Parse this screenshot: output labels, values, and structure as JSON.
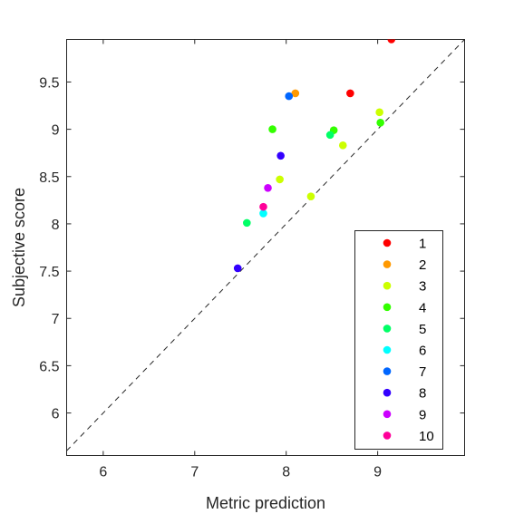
{
  "chart_data": {
    "type": "scatter",
    "title": "",
    "xlabel": "Metric prediction",
    "ylabel": "Subjective score",
    "xlim": [
      5.6,
      9.95
    ],
    "ylim": [
      5.55,
      9.95
    ],
    "xticks": [
      6,
      7,
      8,
      9
    ],
    "yticks": [
      6,
      6.5,
      7,
      7.5,
      8,
      8.5,
      9,
      9.5
    ],
    "xtick_labels": [
      "6",
      "7",
      "8",
      "9"
    ],
    "ytick_labels": [
      "6",
      "6.5",
      "7",
      "7.5",
      "8",
      "8.5",
      "9",
      "9.5"
    ],
    "reference_line": "y = x (dashed)",
    "grid": false,
    "legend_position": "bottom-right",
    "series": [
      {
        "name": "1",
        "color": "#ff0000",
        "points": [
          [
            9.15,
            9.95
          ],
          [
            8.7,
            9.38
          ]
        ]
      },
      {
        "name": "2",
        "color": "#ff9900",
        "points": [
          [
            8.1,
            9.38
          ]
        ]
      },
      {
        "name": "3",
        "color": "#ccff00",
        "points": [
          [
            9.02,
            9.18
          ],
          [
            8.62,
            8.83
          ],
          [
            7.93,
            8.47
          ],
          [
            8.27,
            8.29
          ]
        ]
      },
      {
        "name": "4",
        "color": "#33ff00",
        "points": [
          [
            7.85,
            9.0
          ],
          [
            9.03,
            9.07
          ],
          [
            8.52,
            8.99
          ]
        ]
      },
      {
        "name": "5",
        "color": "#00ff66",
        "points": [
          [
            8.48,
            8.94
          ],
          [
            7.57,
            8.01
          ]
        ]
      },
      {
        "name": "6",
        "color": "#00ffff",
        "points": [
          [
            7.75,
            8.11
          ]
        ]
      },
      {
        "name": "7",
        "color": "#0066ff",
        "points": [
          [
            8.03,
            9.35
          ]
        ]
      },
      {
        "name": "8",
        "color": "#3300ff",
        "points": [
          [
            7.94,
            8.72
          ],
          [
            7.47,
            7.53
          ]
        ]
      },
      {
        "name": "9",
        "color": "#cc00ff",
        "points": [
          [
            7.8,
            8.38
          ]
        ]
      },
      {
        "name": "10",
        "color": "#ff0099",
        "points": [
          [
            7.75,
            8.18
          ]
        ]
      }
    ]
  }
}
